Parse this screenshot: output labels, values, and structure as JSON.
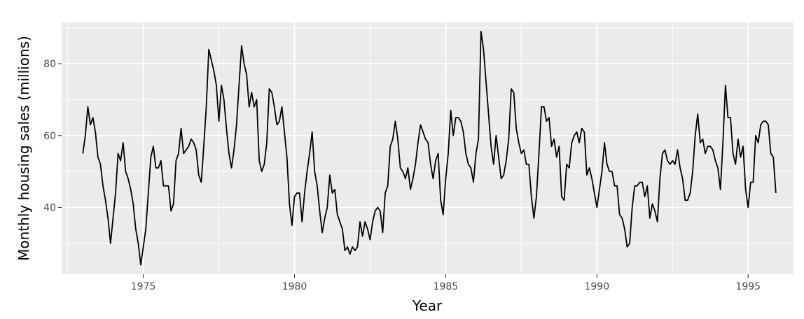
{
  "chart_data": {
    "type": "line",
    "xlabel": "Year",
    "ylabel": "Monthly housing sales (millions)",
    "xlim": [
      1972.3,
      1996.5
    ],
    "ylim": [
      21.4,
      91.5
    ],
    "x_ticks": [
      1975,
      1980,
      1985,
      1990,
      1995
    ],
    "x_minor_ticks": [
      1972.5,
      1977.5,
      1982.5,
      1987.5,
      1992.5
    ],
    "y_ticks": [
      40,
      60,
      80
    ],
    "y_minor_ticks": [
      30,
      50,
      70,
      90
    ],
    "grid": true,
    "legend": "none",
    "colors": {
      "panel": "#ebebeb",
      "grid": "#ffffff",
      "line": "#000000"
    },
    "series": [
      {
        "x_start": 1973.0,
        "x_step": 0.083333,
        "values": [
          55,
          60,
          68,
          63,
          65,
          61,
          54,
          52,
          46,
          42,
          37,
          30,
          37,
          44,
          55,
          53,
          58,
          50,
          48,
          45,
          41,
          34,
          30,
          24,
          29,
          34,
          44,
          54,
          57,
          51,
          51,
          53,
          46,
          46,
          46,
          39,
          41,
          53,
          55,
          62,
          55,
          56,
          57,
          59,
          58,
          56,
          49,
          47,
          57,
          68,
          84,
          81,
          78,
          74,
          64,
          74,
          70,
          62,
          55,
          51,
          56,
          63,
          74,
          85,
          80,
          77,
          68,
          72,
          68,
          70,
          53,
          50,
          52,
          58,
          73,
          72,
          68,
          63,
          64,
          68,
          61,
          54,
          41,
          35,
          43,
          44,
          44,
          36,
          44,
          50,
          55,
          61,
          50,
          46,
          39,
          33,
          37,
          40,
          49,
          44,
          45,
          38,
          36,
          34,
          28,
          29,
          27,
          29,
          28,
          29,
          36,
          32,
          36,
          34,
          31,
          36,
          39,
          40,
          39,
          33,
          44,
          46,
          57,
          59,
          64,
          59,
          51,
          50,
          48,
          51,
          45,
          48,
          52,
          58,
          63,
          61,
          59,
          58,
          52,
          48,
          53,
          55,
          42,
          38,
          48,
          55,
          67,
          60,
          65,
          65,
          64,
          61,
          55,
          52,
          51,
          47,
          55,
          59,
          89,
          84,
          75,
          66,
          57,
          52,
          60,
          54,
          48,
          49,
          53,
          59,
          73,
          72,
          62,
          58,
          55,
          56,
          52,
          52,
          43,
          37,
          43,
          55,
          68,
          68,
          64,
          65,
          57,
          59,
          54,
          57,
          43,
          42,
          52,
          51,
          58,
          60,
          61,
          58,
          62,
          61,
          49,
          51,
          48,
          44,
          40,
          45,
          50,
          58,
          52,
          50,
          50,
          46,
          46,
          38,
          37,
          34,
          29,
          30,
          40,
          46,
          46,
          47,
          47,
          43,
          46,
          37,
          41,
          39,
          36,
          48,
          55,
          56,
          53,
          52,
          53,
          52,
          56,
          51,
          48,
          42,
          42,
          44,
          50,
          60,
          66,
          58,
          59,
          55,
          57,
          57,
          56,
          53,
          51,
          45,
          58,
          74,
          65,
          65,
          55,
          52,
          59,
          54,
          57,
          45,
          40,
          47,
          47,
          60,
          58,
          63,
          64,
          64,
          63,
          55,
          54,
          44
        ]
      }
    ]
  }
}
